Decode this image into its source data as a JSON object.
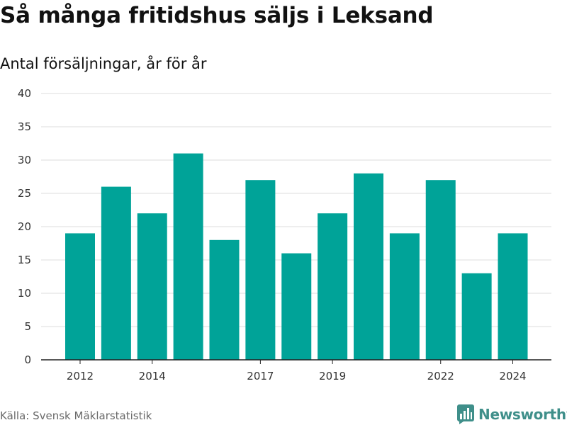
{
  "header": {
    "title": "Så många fritidshus säljs i Leksand",
    "subtitle": "Antal försäljningar, år för år"
  },
  "footer": {
    "source": "Källa: Svensk Mäklarstatistik",
    "brand": "Newsworthy",
    "brand_icon": "bar-chart-logo-icon"
  },
  "colors": {
    "bar": "#00a398",
    "grid": "#dddddd",
    "axis": "#222222",
    "brand": "#3f8f8a"
  },
  "chart_data": {
    "type": "bar",
    "x": [
      2012,
      2013,
      2014,
      2015,
      2016,
      2017,
      2018,
      2019,
      2020,
      2021,
      2022,
      2023,
      2024
    ],
    "values": [
      19,
      26,
      22,
      31,
      18,
      27,
      16,
      22,
      28,
      19,
      27,
      13,
      19
    ],
    "xticks": [
      "2012",
      "2014",
      "2017",
      "2019",
      "2022",
      "2024"
    ],
    "yticks": [
      "0",
      "5",
      "10",
      "15",
      "20",
      "25",
      "30",
      "35",
      "40"
    ],
    "ylim": [
      0,
      40
    ],
    "grid": true
  }
}
